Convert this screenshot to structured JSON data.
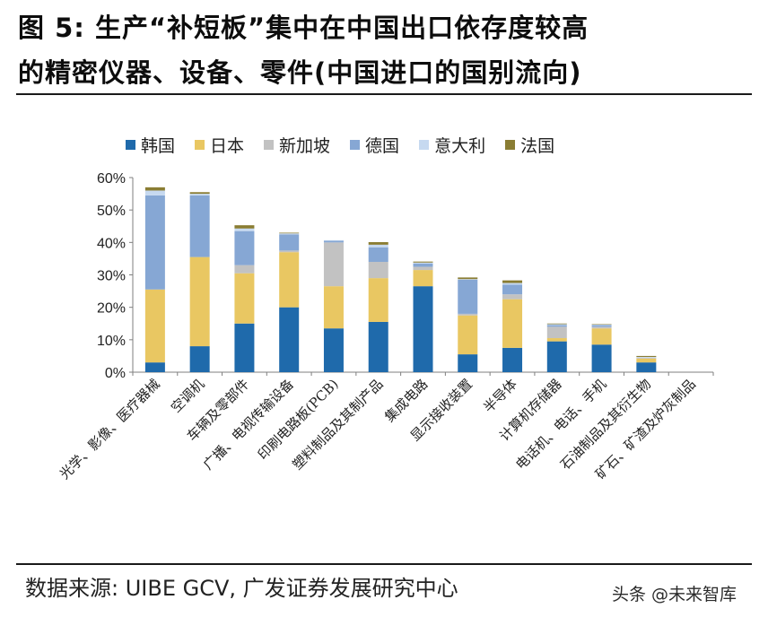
{
  "figure": {
    "title_line1": "图 5: 生产“补短板”集中在中国出口依存度较高",
    "title_line2": "的精密仪器、设备、零件(中国进口的国别流向)",
    "source": "数据来源: UIBE GCV, 广发证券发展研究中心",
    "watermark": "头条 @未来智库"
  },
  "chart_data": {
    "type": "bar",
    "stacked": true,
    "categories": [
      "光学、影像、医疗器械",
      "空调机",
      "车辆及零部件",
      "广播、电视传输设备",
      "印刷电路板(PCB)",
      "塑料制品及其制产品",
      "集成电路",
      "显示接收装置",
      "半导体",
      "计算机存储器",
      "电话机、电话、手机",
      "石油制品及其衍生物",
      "矿石、矿渣及炉灰制品"
    ],
    "series": [
      {
        "name": "韩国",
        "color": "#1f6aab",
        "values": [
          3,
          8,
          15,
          20,
          13.5,
          15.5,
          26.5,
          5.5,
          7.5,
          9.5,
          8.5,
          3,
          0
        ]
      },
      {
        "name": "日本",
        "color": "#e9c762",
        "values": [
          22.5,
          27.5,
          15.5,
          17,
          13,
          13.5,
          5,
          12,
          15,
          1,
          5,
          1.2,
          0
        ]
      },
      {
        "name": "新加坡",
        "color": "#c2c2c2",
        "values": [
          0,
          0,
          2.5,
          0.5,
          13.5,
          5,
          1,
          0.5,
          1.5,
          3.5,
          0.5,
          0.3,
          0
        ]
      },
      {
        "name": "德国",
        "color": "#86a7d4",
        "values": [
          29,
          19,
          10.5,
          5,
          0.5,
          4.5,
          1,
          10.5,
          3,
          0.5,
          0.5,
          0,
          0
        ]
      },
      {
        "name": "意大利",
        "color": "#c6d9f0",
        "values": [
          1.5,
          0.5,
          0.8,
          0.3,
          0.2,
          0.8,
          0.3,
          0.2,
          0.5,
          0.3,
          0.2,
          0.2,
          0
        ]
      },
      {
        "name": "法国",
        "color": "#8a7d33",
        "values": [
          1,
          0.5,
          1,
          0.2,
          0,
          0.8,
          0.3,
          0.5,
          0.8,
          0.2,
          0.1,
          0.3,
          0
        ]
      }
    ],
    "ylim": [
      0,
      60
    ],
    "yticks": [
      "0%",
      "10%",
      "20%",
      "30%",
      "40%",
      "50%",
      "60%"
    ],
    "ytick_values": [
      0,
      10,
      20,
      30,
      40,
      50,
      60
    ],
    "legend_position": "top",
    "grid": false,
    "xlabel": "",
    "ylabel": ""
  }
}
